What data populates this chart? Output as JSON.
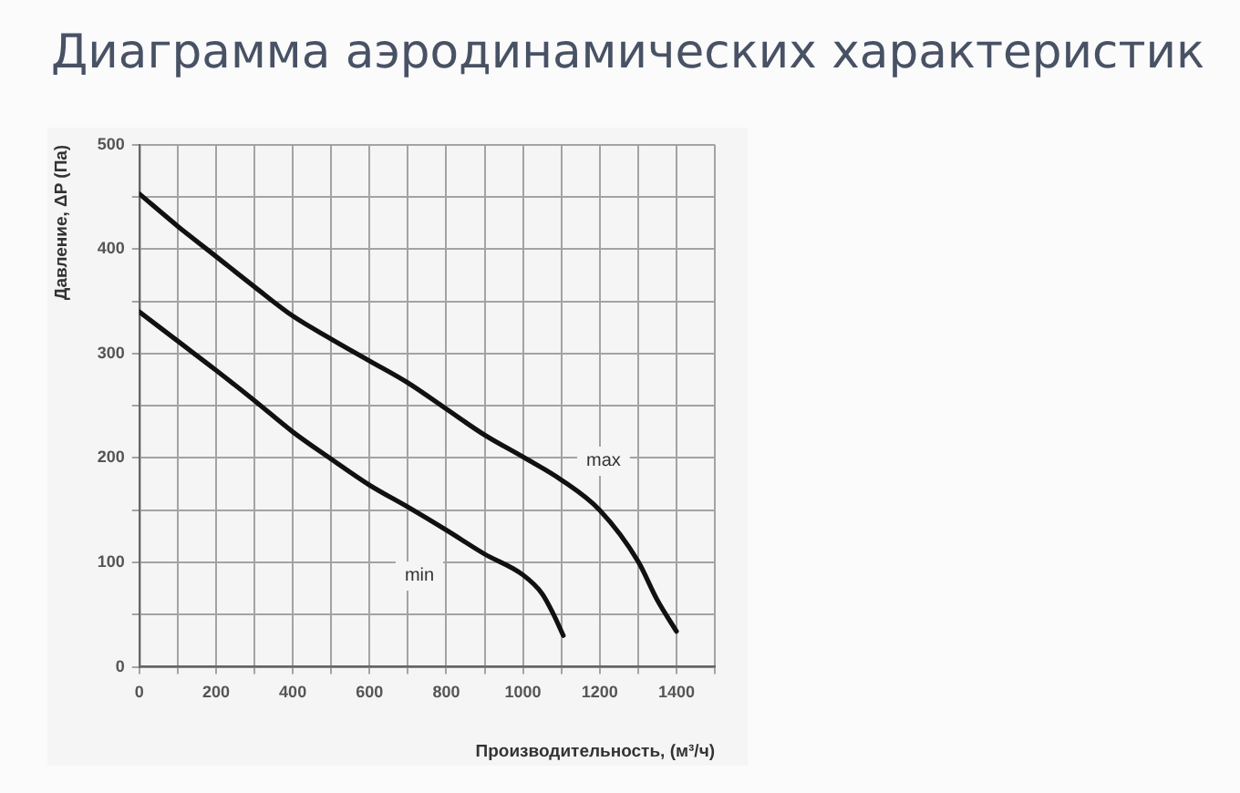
{
  "chart_data": {
    "type": "line",
    "title": "Диаграмма аэродинамических характеристик",
    "xlabel": "Производительность, (м³/ч)",
    "ylabel": "Давление, ΔP (Па)",
    "xlim": [
      0,
      1500
    ],
    "ylim": [
      0,
      500
    ],
    "xticks": [
      0,
      {
        "value": 100,
        "label": null
      },
      200,
      {
        "value": 300,
        "label": null
      },
      400,
      {
        "value": 500,
        "label": null
      },
      600,
      {
        "value": 700,
        "label": null
      },
      800,
      {
        "value": 900,
        "label": null
      },
      1000,
      {
        "value": 1100,
        "label": null
      },
      1200,
      {
        "value": 1300,
        "label": null
      },
      1400,
      {
        "value": 1500,
        "label": null
      }
    ],
    "yticks": [
      0,
      {
        "value": 50,
        "label": null
      },
      100,
      {
        "value": 150,
        "label": null
      },
      200,
      {
        "value": 250,
        "label": null
      },
      300,
      {
        "value": 350,
        "label": null
      },
      400,
      {
        "value": 450,
        "label": null
      },
      500
    ],
    "grid": true,
    "line_style": "solid",
    "series": [
      {
        "color": "#111111",
        "x": [
          0,
          100,
          200,
          300,
          400,
          500,
          600,
          700,
          800,
          900,
          1000,
          1100,
          1200,
          1300,
          1350,
          1400
        ],
        "values": [
          453,
          422,
          393,
          364,
          336,
          314,
          293,
          272,
          247,
          222,
          201,
          179,
          150,
          101,
          64,
          34
        ]
      },
      {
        "color": "#111111",
        "x": [
          0,
          100,
          200,
          300,
          400,
          500,
          600,
          700,
          800,
          900,
          1000,
          1050,
          1080,
          1105
        ],
        "values": [
          340,
          312,
          284,
          255,
          225,
          199,
          174,
          153,
          131,
          108,
          88,
          70,
          50,
          30
        ]
      }
    ],
    "annotations": [
      {
        "text": "max",
        "x": 1210,
        "y": 197
      },
      {
        "text": "min",
        "x": 730,
        "y": 87
      }
    ]
  }
}
